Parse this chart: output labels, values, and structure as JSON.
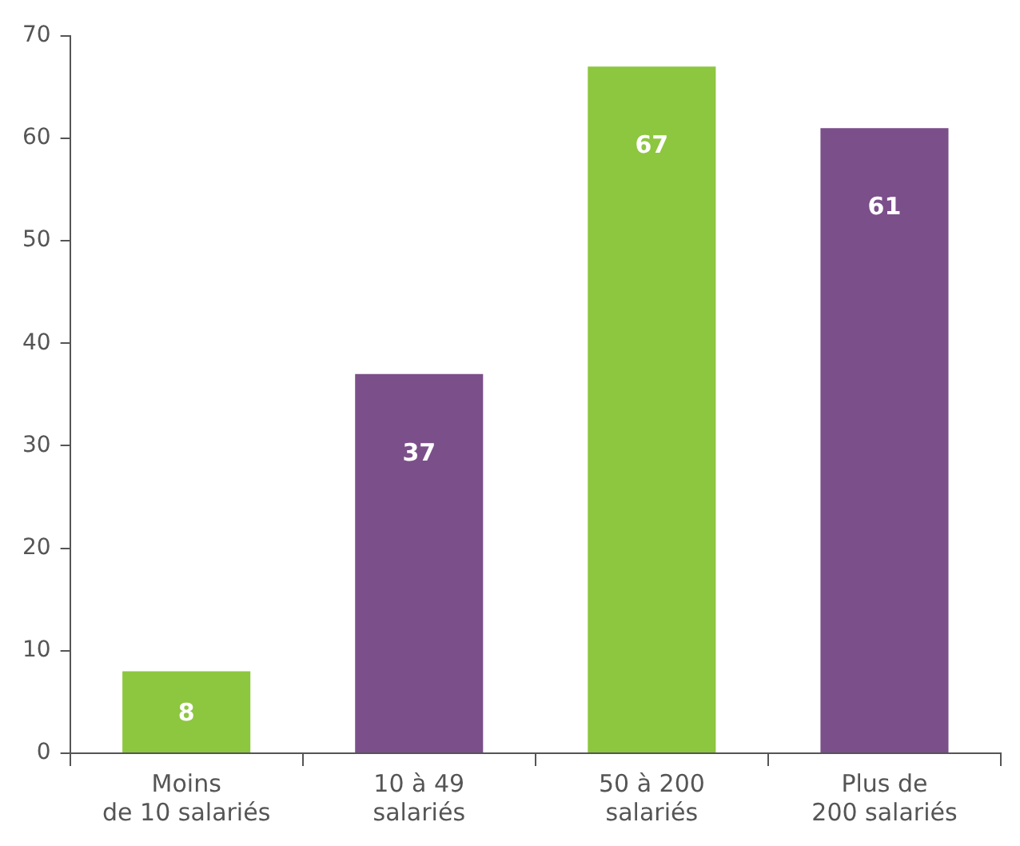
{
  "chart_data": {
    "type": "bar",
    "categories": [
      "Moins\nde 10 salariés",
      "10 à 49\nsalariés",
      "50 à 200\nsalariés",
      "Plus de\n200 salariés"
    ],
    "values": [
      8,
      37,
      67,
      61
    ],
    "colors": [
      "#8dc63f",
      "#7b4f89",
      "#8dc63f",
      "#7b4f89"
    ],
    "ylim": [
      0,
      70
    ],
    "yticks": [
      0,
      10,
      20,
      30,
      40,
      50,
      60,
      70
    ],
    "data_labels": true,
    "grid": false,
    "legend": false
  }
}
